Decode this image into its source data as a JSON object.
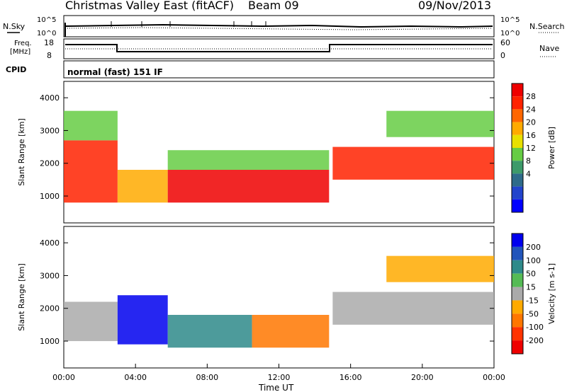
{
  "header": {
    "station": "Christmas Valley East (fitACF)",
    "beam": "Beam 09",
    "date": "09/Nov/2013"
  },
  "panel_labels": {
    "nsky": "N.Sky",
    "nsearch": "N.Search",
    "freq": "Freq.",
    "freq_unit": "[MHz]",
    "nave": "Nave",
    "cpid": "CPID",
    "mode": "normal (fast) 151 IF"
  },
  "noise_ticks": {
    "left_top": "10^5",
    "left_bottom": "10^0",
    "right_top": "10^5",
    "right_bottom": "10^0"
  },
  "freq_ticks": {
    "left": [
      "18",
      "8"
    ],
    "right": [
      "60",
      "0"
    ]
  },
  "colors": {
    "power": [
      "#0000ff",
      "#2244cc",
      "#2e6b8a",
      "#3d9a6a",
      "#66cc44",
      "#e8e000",
      "#ffaa00",
      "#ff6600",
      "#ff2200",
      "#ee0000"
    ],
    "velocity": [
      "#0000ee",
      "#2255bb",
      "#2e8a8a",
      "#55bb55",
      "#aaaaaa",
      "#ffaa00",
      "#ff7700",
      "#ff3300",
      "#ee0000"
    ],
    "ground_scatter": "#c0c0c0"
  },
  "chart_data": [
    {
      "type": "heatmap",
      "ylabel": "Slant Range [km]",
      "xlabel": "Time UT",
      "x_ticks": [
        "00:00",
        "04:00",
        "08:00",
        "12:00",
        "16:00",
        "20:00",
        "00:00"
      ],
      "x_range_hours": [
        0,
        24
      ],
      "y_range_km": [
        180,
        4500
      ],
      "y_ticks": [
        "1000",
        "2000",
        "3000",
        "4000"
      ],
      "colorbar": {
        "label": "Power [dB]",
        "ticks": [
          "4",
          "8",
          "12",
          "16",
          "20",
          "24",
          "28"
        ],
        "range": [
          0,
          30
        ]
      },
      "regions": [
        {
          "t0": 0.0,
          "t1": 3.0,
          "r0": 800,
          "r1": 2700,
          "power": 26
        },
        {
          "t0": 0.0,
          "t1": 3.0,
          "r0": 2700,
          "r1": 3600,
          "power": 12
        },
        {
          "t0": 3.0,
          "t1": 5.8,
          "r0": 800,
          "r1": 1800,
          "power": 18
        },
        {
          "t0": 5.8,
          "t1": 14.8,
          "r0": 800,
          "r1": 1800,
          "power": 30
        },
        {
          "t0": 5.8,
          "t1": 14.8,
          "r0": 1800,
          "r1": 2400,
          "power": 12
        },
        {
          "t0": 15.0,
          "t1": 24.0,
          "r0": 1500,
          "r1": 2500,
          "power": 26
        },
        {
          "t0": 18.0,
          "t1": 24.0,
          "r0": 2800,
          "r1": 3600,
          "power": 14
        }
      ]
    },
    {
      "type": "heatmap",
      "ylabel": "Slant Range [km]",
      "xlabel": "Time UT",
      "x_ticks": [
        "00:00",
        "04:00",
        "08:00",
        "12:00",
        "16:00",
        "20:00",
        "00:00"
      ],
      "x_range_hours": [
        0,
        24
      ],
      "y_range_km": [
        180,
        4500
      ],
      "y_ticks": [
        "1000",
        "2000",
        "3000",
        "4000"
      ],
      "colorbar": {
        "label": "Velocity [m s-1]",
        "ticks": [
          "200",
          "100",
          "50",
          "15",
          "-15",
          "-50",
          "-100",
          "-200"
        ],
        "range": [
          -250,
          250
        ]
      },
      "regions": [
        {
          "t0": 0.0,
          "t1": 3.0,
          "r0": 1000,
          "r1": 2200,
          "velocity": 0
        },
        {
          "t0": 3.0,
          "t1": 5.8,
          "r0": 900,
          "r1": 2400,
          "velocity": 220
        },
        {
          "t0": 5.8,
          "t1": 10.5,
          "r0": 800,
          "r1": 1800,
          "velocity": 70
        },
        {
          "t0": 10.5,
          "t1": 14.8,
          "r0": 800,
          "r1": 1800,
          "velocity": -100
        },
        {
          "t0": 15.0,
          "t1": 24.0,
          "r0": 1500,
          "r1": 2500,
          "velocity": 0
        },
        {
          "t0": 18.0,
          "t1": 24.0,
          "r0": 2800,
          "r1": 3600,
          "velocity": -30
        }
      ]
    }
  ]
}
